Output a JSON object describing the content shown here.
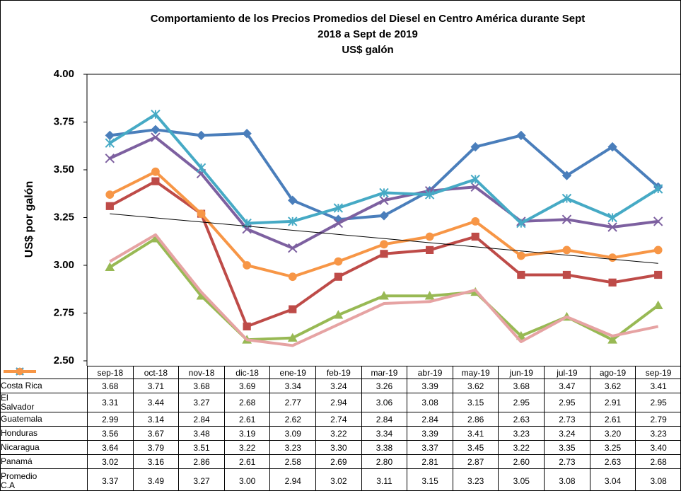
{
  "chart_data": {
    "type": "line",
    "title": [
      "Comportamiento de los Precios Promedios del Diesel en Centro América durante Sept",
      "2018 a Sept de 2019",
      "US$ galón"
    ],
    "y_label": "US$ por galón",
    "categories": [
      "sep-18",
      "oct-18",
      "nov-18",
      "dic-18",
      "ene-19",
      "feb-19",
      "mar-19",
      "abr-19",
      "may-19",
      "jun-19",
      "jul-19",
      "ago-19",
      "sep-19"
    ],
    "ylim": [
      2.5,
      4.0
    ],
    "yticks": [
      {
        "value": 2.5,
        "label": "2.50"
      },
      {
        "value": 2.75,
        "label": "2.75"
      },
      {
        "value": 3,
        "label": "3.00"
      },
      {
        "value": 3.25,
        "label": "3.25"
      },
      {
        "value": 3.5,
        "label": "3.50"
      },
      {
        "value": 3.75,
        "label": "3.75"
      },
      {
        "value": 4,
        "label": "4.00"
      }
    ],
    "grid": false,
    "trend_values": [
      3.27,
      3.01
    ],
    "series": [
      {
        "name": "Costa Rica",
        "color": "#4a7ebb",
        "marker": "diamond",
        "values": [
          3.68,
          3.71,
          3.68,
          3.69,
          3.34,
          3.24,
          3.26,
          3.39,
          3.62,
          3.68,
          3.47,
          3.62,
          3.41
        ],
        "value_labels": [
          "3.68",
          "3.71",
          "3.68",
          "3.69",
          "3.34",
          "3.24",
          "3.26",
          "3.39",
          "3.62",
          "3.68",
          "3.47",
          "3.62",
          "3.41"
        ]
      },
      {
        "name": "El Salvador",
        "color": "#be4b48",
        "marker": "square",
        "values": [
          3.31,
          3.44,
          3.27,
          2.68,
          2.77,
          2.94,
          3.06,
          3.08,
          3.15,
          2.95,
          2.95,
          2.91,
          2.95
        ],
        "value_labels": [
          "3.31",
          "3.44",
          "3.27",
          "2.68",
          "2.77",
          "2.94",
          "3.06",
          "3.08",
          "3.15",
          "2.95",
          "2.95",
          "2.91",
          "2.95"
        ]
      },
      {
        "name": "Guatemala",
        "color": "#98b954",
        "marker": "triangle",
        "values": [
          2.99,
          3.14,
          2.84,
          2.61,
          2.62,
          2.74,
          2.84,
          2.84,
          2.86,
          2.63,
          2.73,
          2.61,
          2.79
        ],
        "value_labels": [
          "2.99",
          "3.14",
          "2.84",
          "2.61",
          "2.62",
          "2.74",
          "2.84",
          "2.84",
          "2.86",
          "2.63",
          "2.73",
          "2.61",
          "2.79"
        ]
      },
      {
        "name": "Honduras",
        "color": "#7d60a0",
        "marker": "x",
        "values": [
          3.56,
          3.67,
          3.48,
          3.19,
          3.09,
          3.22,
          3.34,
          3.39,
          3.41,
          3.23,
          3.24,
          3.2,
          3.23
        ],
        "value_labels": [
          "3.56",
          "3.67",
          "3.48",
          "3.19",
          "3.09",
          "3.22",
          "3.34",
          "3.39",
          "3.41",
          "3.23",
          "3.24",
          "3.20",
          "3.23"
        ]
      },
      {
        "name": "Nicaragua",
        "color": "#46aac5",
        "marker": "star",
        "values": [
          3.64,
          3.79,
          3.51,
          3.22,
          3.23,
          3.3,
          3.38,
          3.37,
          3.45,
          3.22,
          3.35,
          3.25,
          3.4
        ],
        "value_labels": [
          "3.64",
          "3.79",
          "3.51",
          "3.22",
          "3.23",
          "3.30",
          "3.38",
          "3.37",
          "3.45",
          "3.22",
          "3.35",
          "3.25",
          "3.40"
        ]
      },
      {
        "name": "Panamá",
        "color": "#e6a3a3",
        "marker": "none",
        "values": [
          3.02,
          3.16,
          2.86,
          2.61,
          2.58,
          2.69,
          2.8,
          2.81,
          2.87,
          2.6,
          2.73,
          2.63,
          2.68
        ],
        "value_labels": [
          "3.02",
          "3.16",
          "2.86",
          "2.61",
          "2.58",
          "2.69",
          "2.80",
          "2.81",
          "2.87",
          "2.60",
          "2.73",
          "2.63",
          "2.68"
        ]
      },
      {
        "name": "Promedio C.A",
        "color": "#f79646",
        "marker": "circle",
        "values": [
          3.37,
          3.49,
          3.27,
          3,
          2.94,
          3.02,
          3.11,
          3.15,
          3.23,
          3.05,
          3.08,
          3.04,
          3.08
        ],
        "value_labels": [
          "3.37",
          "3.49",
          "3.27",
          "3.00",
          "2.94",
          "3.02",
          "3.11",
          "3.15",
          "3.23",
          "3.05",
          "3.08",
          "3.04",
          "3.08"
        ]
      }
    ]
  }
}
